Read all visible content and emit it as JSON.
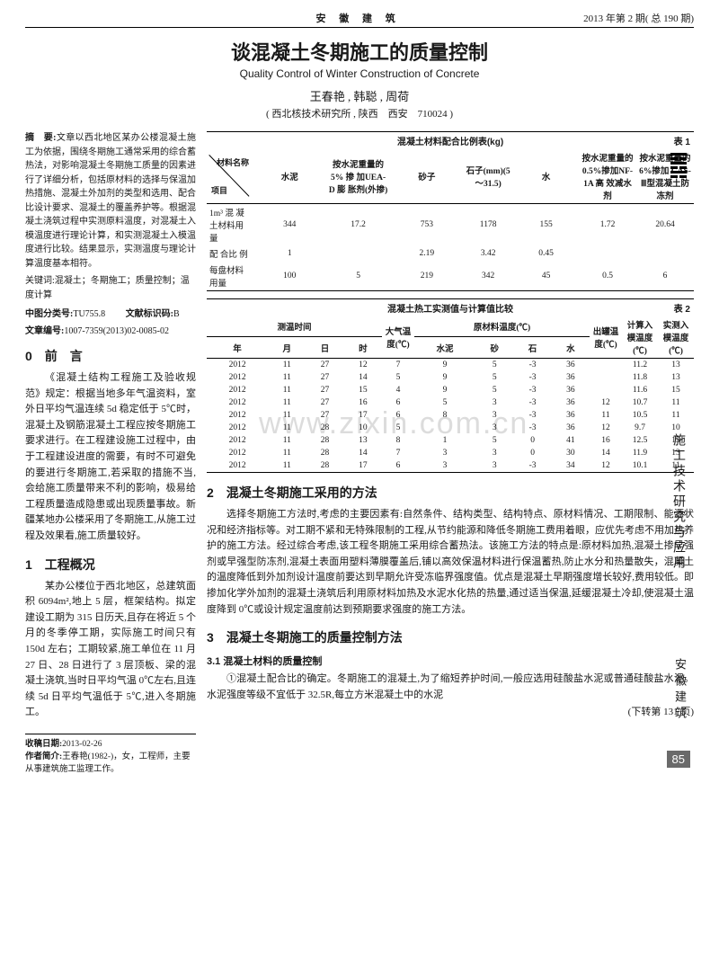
{
  "header": {
    "journal": "安 徽 建 筑",
    "issue": "2013 年第 2 期( 总 190 期)"
  },
  "title_cn": "谈混凝土冬期施工的质量控制",
  "title_en": "Quality Control of Winter Construction of Concrete",
  "authors": "王春艳 , 韩聪 , 周荷",
  "affiliation": "( 西北核技术研究所 , 陕西　西安　710024 )",
  "abstract_label": "摘　要:",
  "abstract": "文章以西北地区某办公楼混凝土施工为依据，围绕冬期施工通常采用的综合蓄热法，对影响混凝土冬期施工质量的因素进行了详细分析，包括原材料的选择与保温加热措施、混凝土外加剂的类型和选用、配合比设计要求、混凝土的覆盖养护等。根据混凝土浇筑过程中实测原料温度，对混凝土入模温度进行理论计算，和实测混凝土入模温度进行比较。结果显示，实测温度与理论计算温度基本相符。",
  "keywords_label": "关键词:",
  "keywords": "混凝土；冬期施工；质量控制；温度计算",
  "clc_label": "中图分类号:",
  "clc": "TU755.8",
  "doccode_label": "文献标识码:",
  "doccode": "B",
  "artno_label": "文章编号:",
  "artno": "1007-7359(2013)02-0085-02",
  "table1": {
    "caption": "混凝土材料配合比例表(kg)",
    "tag": "表 1",
    "diag_top": "材料名称",
    "diag_bot": "项目",
    "headers": [
      "水泥",
      "按水泥重量的5% 掺 加UEA-D 膨 胀剂(外掺)",
      "砂子",
      "石子(mm)(5～31.5)",
      "水",
      "按水泥重量的 0.5%掺加NF-1A 高 效减水剂",
      "按水泥重量的6%掺加 CAS-Ⅲ型混凝土防冻剂"
    ],
    "rows": [
      {
        "label": "1m³ 混 凝土材料用量",
        "cells": [
          "344",
          "17.2",
          "753",
          "1178",
          "155",
          "1.72",
          "20.64"
        ]
      },
      {
        "label": "配 合比 例",
        "cells": [
          "1",
          "",
          "2.19",
          "3.42",
          "0.45",
          "",
          ""
        ]
      },
      {
        "label": "每盘材料用量",
        "cells": [
          "100",
          "5",
          "219",
          "342",
          "45",
          "0.5",
          "6"
        ]
      }
    ]
  },
  "table2": {
    "caption": "混凝土热工实测值与计算值比较",
    "tag": "表 2",
    "group_headers": [
      "测温时间",
      "大气温度(℃)",
      "原材料温度(℃)",
      "出罐温度(℃)",
      "计算入模温度(℃)",
      "实测入模温度(℃)"
    ],
    "sub_headers": [
      "年",
      "月",
      "日",
      "时",
      "",
      "水泥",
      "砂",
      "石",
      "水",
      "",
      "",
      ""
    ],
    "rows": [
      [
        "2012",
        "11",
        "27",
        "12",
        "7",
        "9",
        "5",
        "-3",
        "36",
        "",
        "11.2",
        "13"
      ],
      [
        "2012",
        "11",
        "27",
        "14",
        "5",
        "9",
        "5",
        "-3",
        "36",
        "",
        "11.8",
        "13"
      ],
      [
        "2012",
        "11",
        "27",
        "15",
        "4",
        "9",
        "5",
        "-3",
        "36",
        "",
        "11.6",
        "15"
      ],
      [
        "2012",
        "11",
        "27",
        "16",
        "6",
        "5",
        "3",
        "-3",
        "36",
        "12",
        "10.7",
        "11"
      ],
      [
        "2012",
        "11",
        "27",
        "17",
        "6",
        "8",
        "3",
        "-3",
        "36",
        "11",
        "10.5",
        "11"
      ],
      [
        "2012",
        "11",
        "28",
        "10",
        "5",
        "",
        "3",
        "-3",
        "36",
        "12",
        "9.7",
        "10"
      ],
      [
        "2012",
        "11",
        "28",
        "13",
        "8",
        "1",
        "5",
        "0",
        "41",
        "16",
        "12.5",
        "15"
      ],
      [
        "2012",
        "11",
        "28",
        "14",
        "7",
        "3",
        "3",
        "0",
        "30",
        "14",
        "11.9",
        "13"
      ],
      [
        "2012",
        "11",
        "28",
        "17",
        "6",
        "3",
        "3",
        "-3",
        "34",
        "12",
        "10.1",
        "11"
      ]
    ]
  },
  "sec0_title": "0　前　言",
  "sec0_p1": "《混凝土结构工程施工及验收规范》规定：根据当地多年气温资料，室外日平均气温连续 5d 稳定低于 5℃时，混凝土及钢筋混凝土工程应按冬期施工要求进行。在工程建设施工过程中，由于工程建设进度的需要，有时不可避免的要进行冬期施工,若采取的措施不当,会给施工质量带来不利的影响，极易给工程质量造成隐患或出现质量事故。新疆某地办公楼采用了冬期施工,从施工过程及效果看,施工质量较好。",
  "sec1_title": "1　工程概况",
  "sec1_p1": "某办公楼位于西北地区，总建筑面积 6094m²,地上 5 层，框架结构。拟定建设工期为 315 日历天,且存在将近 5 个月的冬季停工期，实际施工时间只有150d 左右；工期较紧,施工单位在 11 月27 日、28 日进行了 3 层顶板、梁的混凝土浇筑,当时日平均气温 0℃左右,且连续 5d 日平均气温低于 5℃,进入冬期施工。",
  "sec2_title": "2　混凝土冬期施工采用的方法",
  "sec2_p1": "选择冬期施工方法时,考虑的主要因素有:自然条件、结构类型、结构特点、原材料情况、工期限制、能源状况和经济指标等。对工期不紧和无特殊限制的工程,从节约能源和降低冬期施工费用着眼，应优先考虑不用加热养护的施工方法。经过综合考虑,该工程冬期施工采用综合蓄热法。该施工方法的特点是:原材料加热,混凝土掺早强剂或早强型防冻剂,混凝土表面用塑料薄膜覆盖后,铺以高效保温材料进行保温蓄热,防止水分和热量散失，混凝土的温度降低到外加剂设计温度前要达到早期允许受冻临界强度值。优点是混凝土早期强度增长较好,费用较低。即掺加化学外加剂的混凝土浇筑后利用原材料加热及水泥水化热的热量,通过适当保温,延缓混凝土冷却,使混凝土温度降到 0℃或设计规定温度前达到预期要求强度的施工方法。",
  "sec3_title": "3　混凝土冬期施工的质量控制方法",
  "sec3_1_title": "3.1 混凝土材料的质量控制",
  "sec3_p1": "①混凝土配合比的确定。冬期施工的混凝土,为了缩短养护时间,一般应选用硅酸盐水泥或普通硅酸盐水泥。水泥强度等级不宜低于 32.5R,每立方米混凝土中的水泥",
  "turn_page": "(下转第 131 页)",
  "footer_received_label": "收稿日期:",
  "footer_received": "2013-02-26",
  "footer_bio_label": "作者简介:",
  "footer_bio": "王春艳(1982-)，女，工程师，主要从事建筑施工监理工作。",
  "side1": "施工技术研究与应用",
  "side2": "安徽建筑",
  "page": "85",
  "watermark": "www.zixin.com.cn"
}
